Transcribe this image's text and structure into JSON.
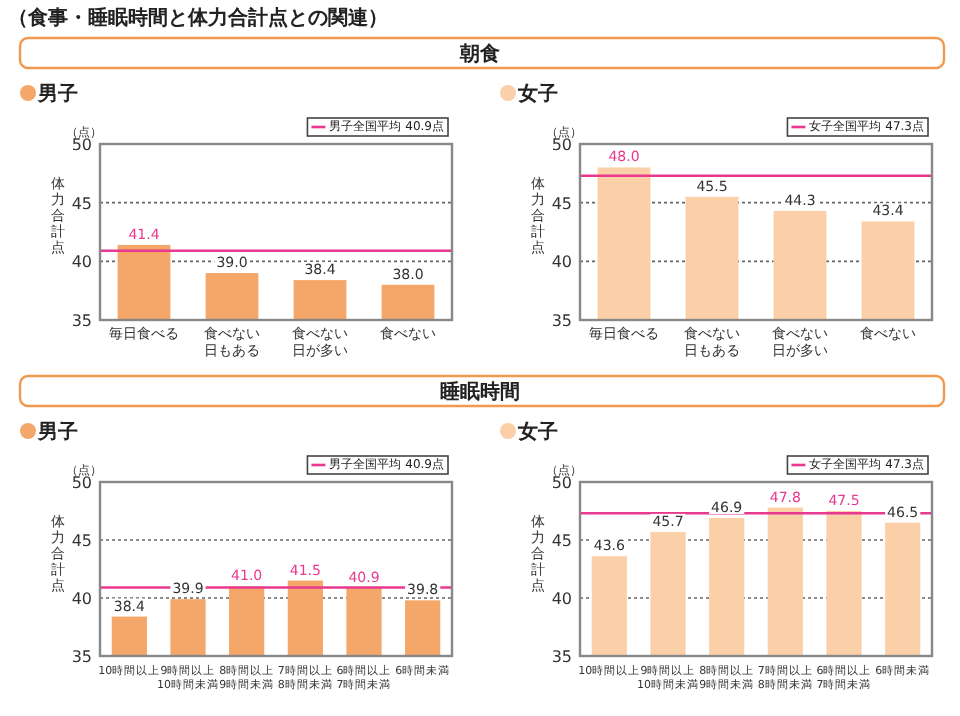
{
  "chart_data": [
    {
      "type": "bar",
      "title": "男子",
      "ylabel": "体力合計点",
      "annotations": [
        "（食事・睡眠時間と体力合計点との関連）",
        "朝食",
        "（点）"
      ],
      "categories": [
        "毎日食べる",
        "食べない日もある",
        "食べない日が多い",
        "食べない"
      ],
      "values": [
        41.4,
        39.0,
        38.4,
        38.0
      ],
      "value_labels": [
        "41.4",
        "39.0",
        "38.4",
        "38.0"
      ],
      "color": "#f4a769",
      "ylim": [
        35,
        50
      ],
      "yticks": [
        35,
        40,
        45,
        50
      ],
      "grid": "y",
      "ref_lines": [
        {
          "axis": "y",
          "value": 40.9,
          "label": "男子全国平均 40.9点",
          "color": "#e8388f"
        }
      ]
    },
    {
      "type": "bar",
      "title": "女子",
      "ylabel": "体力合計点",
      "annotations": [
        "（点）"
      ],
      "categories": [
        "毎日食べる",
        "食べない日もある",
        "食べない日が多い",
        "食べない"
      ],
      "values": [
        48.0,
        45.5,
        44.3,
        43.4
      ],
      "value_labels": [
        "48.0",
        "45.5",
        "44.3",
        "43.4"
      ],
      "color": "#fbd0a8",
      "ylim": [
        35,
        50
      ],
      "yticks": [
        35,
        40,
        45,
        50
      ],
      "grid": "y",
      "ref_lines": [
        {
          "axis": "y",
          "value": 47.3,
          "label": "女子全国平均 47.3点",
          "color": "#e8388f"
        }
      ]
    },
    {
      "type": "bar",
      "title": "男子",
      "ylabel": "体力合計点",
      "annotations": [
        "睡眠時間",
        "（点）"
      ],
      "categories": [
        "10時間以上",
        "9時間以上10時間未満",
        "8時間以上9時間未満",
        "7時間以上8時間未満",
        "6時間以上7時間未満",
        "6時間未満"
      ],
      "values": [
        38.4,
        39.9,
        41.0,
        41.5,
        40.9,
        39.8
      ],
      "value_labels": [
        "38.4",
        "39.9",
        "41.0",
        "41.5",
        "40.9",
        "39.8"
      ],
      "color": "#f4a769",
      "ylim": [
        35,
        50
      ],
      "yticks": [
        35,
        40,
        45,
        50
      ],
      "grid": "y",
      "ref_lines": [
        {
          "axis": "y",
          "value": 40.9,
          "label": "男子全国平均 40.9点",
          "color": "#e8388f"
        }
      ]
    },
    {
      "type": "bar",
      "title": "女子",
      "ylabel": "体力合計点",
      "annotations": [
        "（点）"
      ],
      "categories": [
        "10時間以上",
        "9時間以上10時間未満",
        "8時間以上9時間未満",
        "7時間以上8時間未満",
        "6時間以上7時間未満",
        "6時間未満"
      ],
      "values": [
        43.6,
        45.7,
        46.9,
        47.8,
        47.5,
        46.5
      ],
      "value_labels": [
        "43.6",
        "45.7",
        "46.9",
        "47.8",
        "47.5",
        "46.5"
      ],
      "color": "#fbd0a8",
      "ylim": [
        35,
        50
      ],
      "yticks": [
        35,
        40,
        45,
        50
      ],
      "grid": "y",
      "ref_lines": [
        {
          "axis": "y",
          "value": 47.3,
          "label": "女子全国平均 47.3点",
          "color": "#e8388f"
        }
      ]
    }
  ]
}
